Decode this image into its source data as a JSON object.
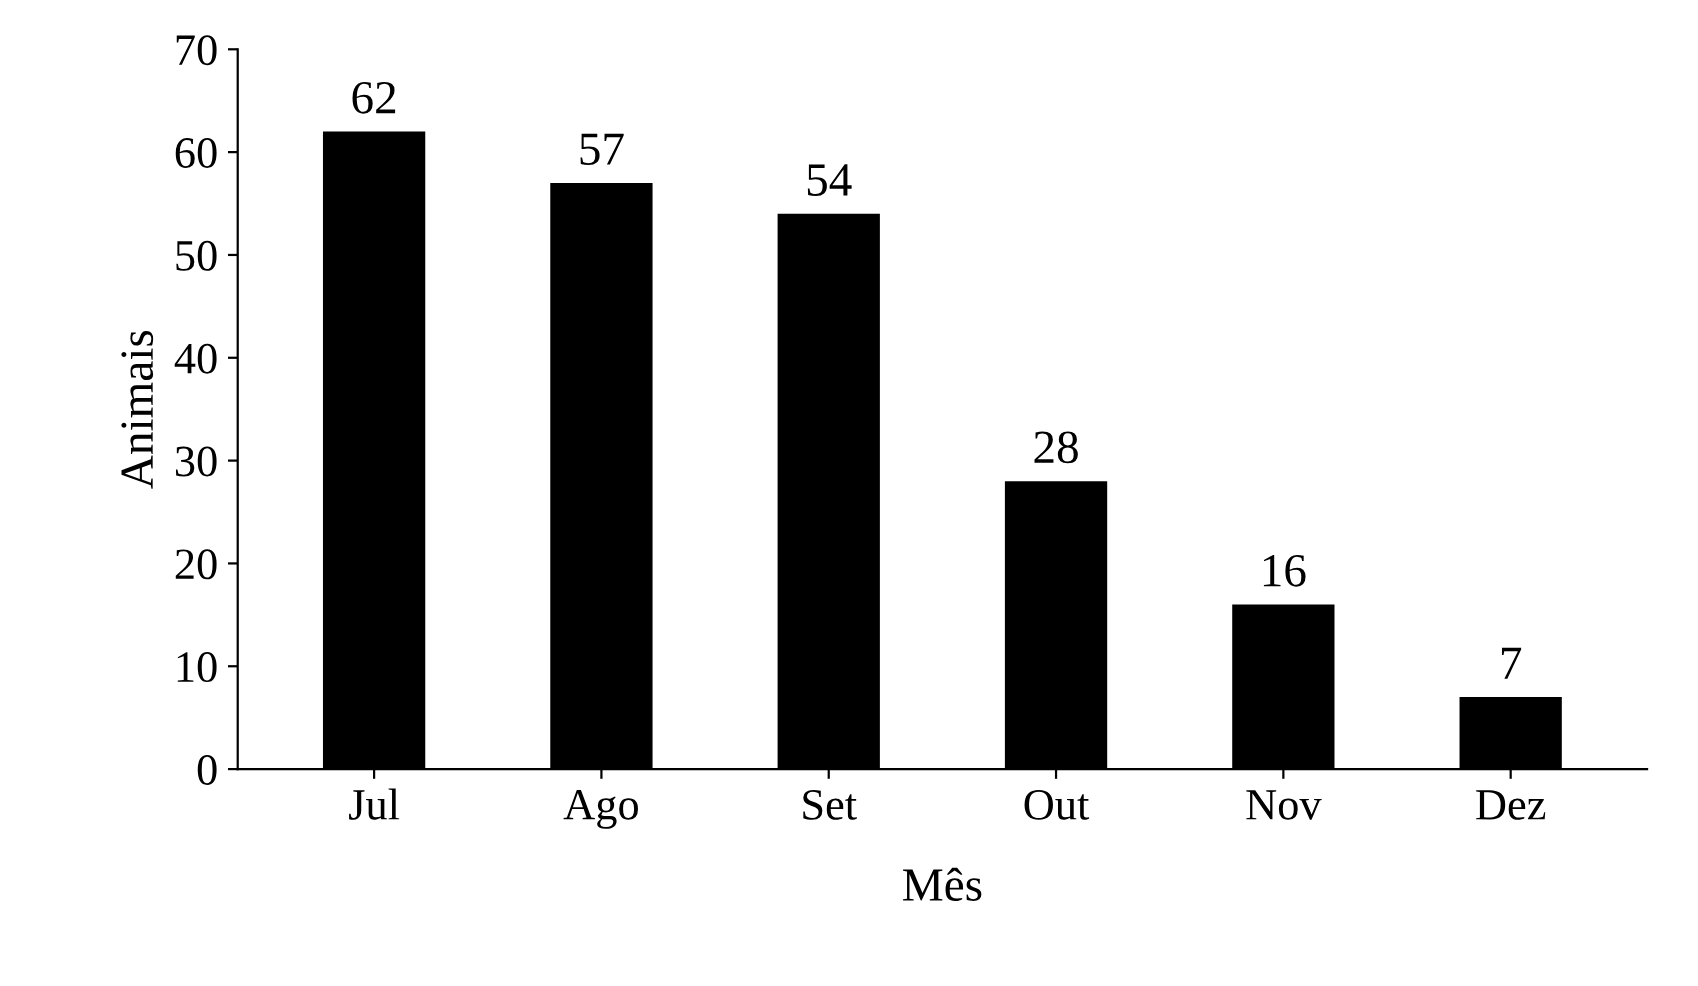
{
  "chart_data": {
    "type": "bar",
    "xlabel": "Mês",
    "ylabel": "Animais",
    "categories": [
      "Jul",
      "Ago",
      "Set",
      "Out",
      "Nov",
      "Dez"
    ],
    "values": [
      62,
      57,
      54,
      28,
      16,
      7
    ],
    "color": "#000000",
    "ylim": [
      0,
      70
    ],
    "yticks": [
      0,
      10,
      20,
      30,
      40,
      50,
      60,
      70
    ],
    "data_labels": true,
    "grid": false
  }
}
